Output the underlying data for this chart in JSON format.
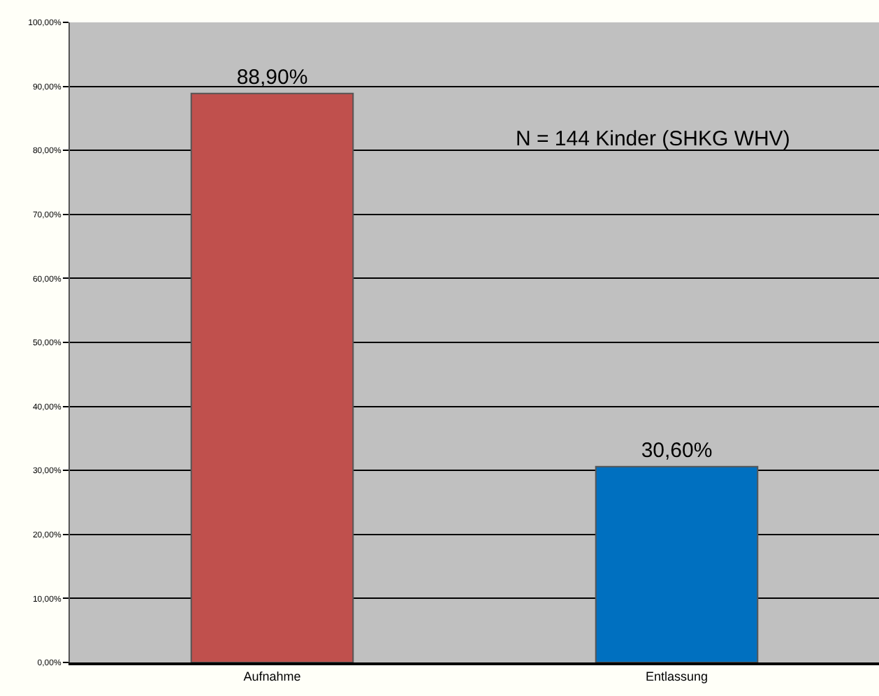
{
  "chart_data": {
    "type": "bar",
    "categories": [
      "Aufnahme",
      "Entlassung"
    ],
    "values": [
      88.9,
      30.6
    ],
    "colors": [
      "#c0504d",
      "#0070c0"
    ],
    "value_labels": [
      "88,90%",
      "30,60%"
    ],
    "ylim": [
      0,
      100
    ],
    "yticks": [
      {
        "value": 0,
        "label": "0,00%"
      },
      {
        "value": 10,
        "label": "10,00%"
      },
      {
        "value": 20,
        "label": "20,00%"
      },
      {
        "value": 30,
        "label": "30,00%"
      },
      {
        "value": 40,
        "label": "40,00%"
      },
      {
        "value": 50,
        "label": "50,00%"
      },
      {
        "value": 60,
        "label": "60,00%"
      },
      {
        "value": 70,
        "label": "70,00%"
      },
      {
        "value": 80,
        "label": "80,00%"
      },
      {
        "value": 90,
        "label": "90,00%"
      },
      {
        "value": 100,
        "label": "100,00%"
      }
    ],
    "grid": "y",
    "annotations": [
      "N = 144 Kinder (SHKG WHV)"
    ]
  }
}
